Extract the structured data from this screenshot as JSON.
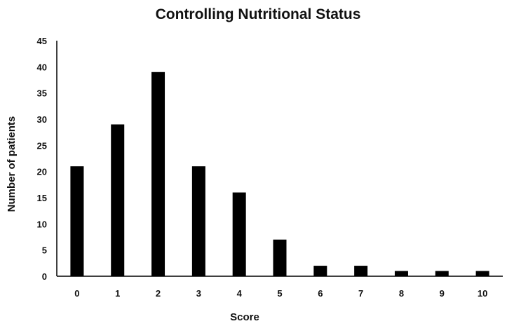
{
  "chart_data": {
    "type": "bar",
    "title": "Controlling Nutritional Status",
    "xlabel": "Score",
    "ylabel": "Number of patients",
    "categories": [
      "0",
      "1",
      "2",
      "3",
      "4",
      "5",
      "6",
      "7",
      "8",
      "9",
      "10"
    ],
    "values": [
      21,
      29,
      39,
      21,
      16,
      7,
      2,
      2,
      1,
      1,
      1
    ],
    "ylim": [
      0,
      45
    ],
    "yticks": [
      "0",
      "5",
      "10",
      "15",
      "20",
      "25",
      "30",
      "35",
      "40",
      "45"
    ],
    "grid": false,
    "legend": "none",
    "bar_color": "#000000",
    "axis_color": "#000000"
  }
}
